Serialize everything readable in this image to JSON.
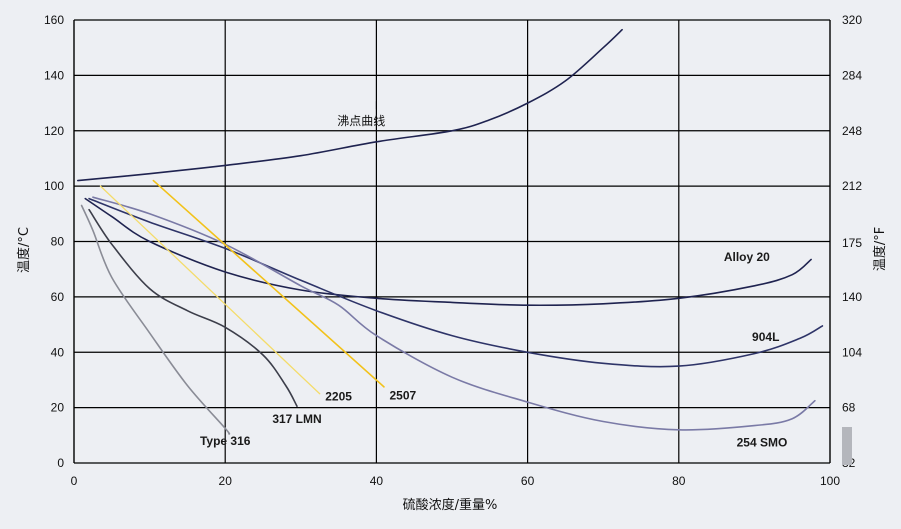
{
  "chart_data": {
    "type": "line",
    "xlabel": "硫酸浓度/重量%",
    "ylabel_left": "温度/°C",
    "ylabel_right": "温度/°F",
    "xlim": [
      0,
      100
    ],
    "ylim": [
      0,
      160
    ],
    "ylim_right": [
      32,
      320
    ],
    "x_ticks": [
      0,
      20,
      40,
      60,
      80,
      100
    ],
    "y_ticks_left": [
      0,
      20,
      40,
      60,
      80,
      100,
      120,
      140,
      160
    ],
    "y_ticks_right": [
      32,
      68,
      104,
      140,
      175,
      212,
      248,
      284,
      320
    ],
    "grid": true,
    "colors": {
      "dark_navy": "#1f2350",
      "navy": "#2e3468",
      "slate_blue": "#7a7aa6",
      "gold": "#f2c21a",
      "light_gold": "#f4dc6a",
      "charcoal": "#3c3e4a",
      "gray": "#8a8c96",
      "grid": "#000000"
    },
    "annotations": [
      {
        "text": "沸点曲线",
        "x": 40,
        "y": 122
      }
    ],
    "series": [
      {
        "name": "沸点曲线",
        "color": "#1f2350",
        "width": 1.6,
        "label_x": 90,
        "label_y": 20,
        "show_label": false,
        "points": [
          [
            0.5,
            102
          ],
          [
            10,
            104.5
          ],
          [
            20,
            107.5
          ],
          [
            30,
            111
          ],
          [
            40,
            116
          ],
          [
            50,
            120
          ],
          [
            55,
            124
          ],
          [
            60,
            130
          ],
          [
            65,
            138
          ],
          [
            70,
            150
          ],
          [
            72.5,
            156.5
          ]
        ]
      },
      {
        "name": "Alloy 20",
        "color": "#1f2350",
        "width": 1.6,
        "label_x": 89,
        "label_y": 73,
        "points": [
          [
            1.5,
            95.5
          ],
          [
            5,
            89
          ],
          [
            10,
            80
          ],
          [
            20,
            69
          ],
          [
            30,
            62.5
          ],
          [
            40,
            59.5
          ],
          [
            50,
            58
          ],
          [
            60,
            57
          ],
          [
            70,
            57.5
          ],
          [
            80,
            59.5
          ],
          [
            90,
            64
          ],
          [
            95,
            68
          ],
          [
            97.5,
            73.5
          ]
        ]
      },
      {
        "name": "904L",
        "color": "#2e3468",
        "width": 1.6,
        "label_x": 91.5,
        "label_y": 44,
        "points": [
          [
            2,
            95.5
          ],
          [
            10,
            87
          ],
          [
            20,
            77.5
          ],
          [
            30,
            66
          ],
          [
            40,
            55
          ],
          [
            50,
            46
          ],
          [
            60,
            40
          ],
          [
            70,
            36
          ],
          [
            80,
            35
          ],
          [
            90,
            39.5
          ],
          [
            96,
            45
          ],
          [
            99,
            49.5
          ]
        ]
      },
      {
        "name": "254 SMO",
        "color": "#7a7aa6",
        "width": 1.6,
        "label_x": 91,
        "label_y": 6,
        "points": [
          [
            2.5,
            96
          ],
          [
            10,
            90
          ],
          [
            20,
            79
          ],
          [
            30,
            64
          ],
          [
            35,
            57
          ],
          [
            40,
            46
          ],
          [
            50,
            31
          ],
          [
            60,
            22
          ],
          [
            70,
            15
          ],
          [
            80,
            12
          ],
          [
            90,
            13.5
          ],
          [
            95,
            16
          ],
          [
            98,
            22.5
          ]
        ]
      },
      {
        "name": "2507",
        "color": "#f2c21a",
        "width": 1.6,
        "label_x": 43.5,
        "label_y": 23,
        "points": [
          [
            10.5,
            102
          ],
          [
            41,
            27.5
          ]
        ]
      },
      {
        "name": "2205",
        "color": "#f4dc6a",
        "width": 1.3,
        "label_x": 35,
        "label_y": 22.5,
        "points": [
          [
            3.5,
            100
          ],
          [
            32.5,
            25
          ]
        ]
      },
      {
        "name": "317 LMN",
        "color": "#3c3e4a",
        "width": 1.6,
        "label_x": 29.5,
        "label_y": 14.5,
        "points": [
          [
            2,
            91.5
          ],
          [
            5,
            79
          ],
          [
            10,
            63
          ],
          [
            15,
            55
          ],
          [
            20,
            49
          ],
          [
            25,
            39
          ],
          [
            28,
            28
          ],
          [
            29.5,
            20.5
          ]
        ]
      },
      {
        "name": "Type 316",
        "color": "#8a8c96",
        "width": 1.6,
        "label_x": 20,
        "label_y": 6.5,
        "points": [
          [
            1,
            93
          ],
          [
            2.5,
            84
          ],
          [
            5,
            67
          ],
          [
            10,
            47
          ],
          [
            15,
            28
          ],
          [
            20,
            12.5
          ],
          [
            20.5,
            10.5
          ]
        ]
      }
    ]
  }
}
